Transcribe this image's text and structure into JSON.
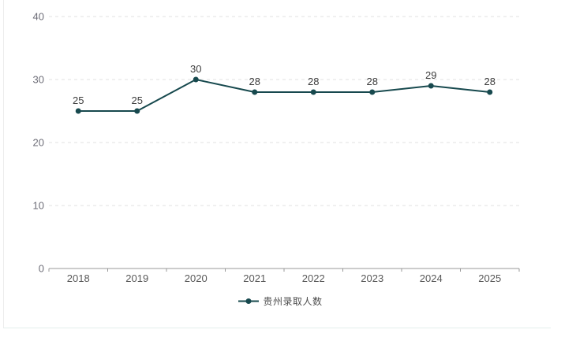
{
  "chart_data": {
    "type": "line",
    "title": "",
    "categories": [
      "2018",
      "2019",
      "2020",
      "2021",
      "2022",
      "2023",
      "2024",
      "2025"
    ],
    "series": [
      {
        "name": "贵州录取人数",
        "values": [
          25,
          25,
          30,
          28,
          28,
          28,
          29,
          28
        ]
      }
    ],
    "ylim": [
      0,
      40
    ],
    "yticks": [
      0,
      10,
      20,
      30,
      40
    ],
    "grid": true,
    "grid_style": "dashed",
    "legend_position": "bottom",
    "show_data_labels": true
  },
  "colors": {
    "series_line": "#17494e",
    "data_label": "#3d3d3d",
    "axis_line": "#999999",
    "x_tick_label": "#595959",
    "y_tick_label": "#6e6e78",
    "gridline": "#e1e1e1",
    "legend_text": "#4d4d4d",
    "card_border_left": "#ededed",
    "card_border_bottom": "#e4efec",
    "background": "#ffffff"
  }
}
